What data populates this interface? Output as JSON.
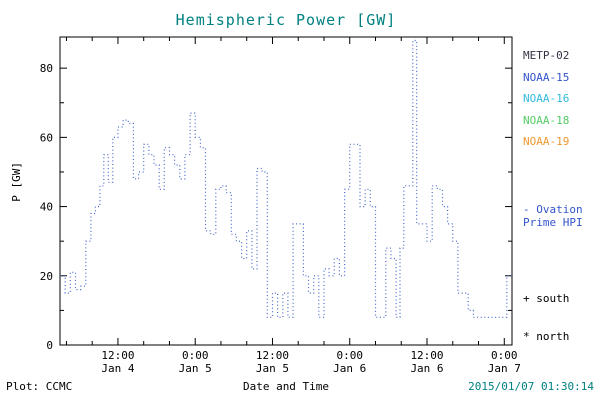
{
  "title": "Hemispheric Power [GW]",
  "colors": {
    "title": "#008080",
    "line": "#4466cc",
    "timestamp": "#008080",
    "ovation": "#3355cc",
    "axis": "#000000"
  },
  "axes": {
    "ylabel": "P [GW]",
    "xlabel": "Date and Time",
    "yticks": [
      0,
      20,
      40,
      60,
      80
    ],
    "ylim": [
      0,
      89
    ],
    "xlim_hours": [
      3,
      73.2
    ],
    "xticks": [
      {
        "hour": 12,
        "time": "12:00",
        "date": "Jan 4"
      },
      {
        "hour": 24,
        "time": "0:00",
        "date": "Jan 5"
      },
      {
        "hour": 36,
        "time": "12:00",
        "date": "Jan 5"
      },
      {
        "hour": 48,
        "time": "0:00",
        "date": "Jan 6"
      },
      {
        "hour": 60,
        "time": "12:00",
        "date": "Jan 6"
      },
      {
        "hour": 72,
        "time": "0:00",
        "date": "Jan 7"
      }
    ]
  },
  "legend": {
    "satellites": [
      {
        "label": "METP-02",
        "color": "#333344"
      },
      {
        "label": "NOAA-15",
        "color": "#3355cc"
      },
      {
        "label": "NOAA-16",
        "color": "#33bbdd"
      },
      {
        "label": "NOAA-18",
        "color": "#55cc66"
      },
      {
        "label": "NOAA-19",
        "color": "#ee9933"
      }
    ],
    "ovation_line1": "- Ovation",
    "ovation_line2": "Prime HPI",
    "south_marker": "+ south",
    "north_marker": "* north"
  },
  "footer": {
    "plot_credit": "Plot: CCMC",
    "timestamp": "2015/01/07 01:30:14"
  },
  "chart_data": {
    "type": "line",
    "subtype": "step-post dotted",
    "title": "Hemispheric Power [GW]",
    "xlabel": "Date and Time",
    "ylabel": "P [GW]",
    "ylim": [
      0,
      89
    ],
    "x_reference": "hours since 2015-01-04 00:00",
    "xtick_labels": [
      "12:00 Jan 4",
      "0:00 Jan 5",
      "12:00 Jan 5",
      "0:00 Jan 6",
      "12:00 Jan 6",
      "0:00 Jan 7"
    ],
    "series": [
      {
        "name": "Ovation Prime HPI",
        "color": "#4466cc"
      }
    ],
    "x_hours": [
      3.0,
      3.8,
      4.6,
      5.4,
      6.2,
      7.0,
      7.8,
      8.5,
      9.2,
      9.8,
      10.5,
      11.2,
      12.0,
      12.8,
      13.6,
      14.4,
      15.2,
      16.0,
      16.8,
      17.6,
      18.4,
      19.2,
      20.0,
      20.8,
      21.6,
      22.4,
      23.2,
      24.0,
      24.8,
      25.6,
      26.4,
      27.2,
      28.0,
      28.8,
      29.6,
      30.4,
      31.2,
      32.0,
      32.8,
      33.6,
      34.4,
      35.2,
      36.0,
      36.8,
      37.6,
      38.4,
      39.2,
      40.0,
      40.8,
      41.6,
      42.4,
      43.2,
      44.0,
      44.8,
      45.6,
      46.4,
      47.2,
      48.0,
      48.8,
      49.6,
      50.4,
      51.2,
      52.0,
      52.8,
      53.6,
      54.4,
      55.2,
      55.8,
      56.4,
      57.2,
      57.8,
      58.4,
      59.2,
      60.0,
      60.8,
      61.6,
      62.4,
      63.2,
      64.0,
      64.8,
      65.6,
      66.4,
      67.2,
      68.2,
      69.4,
      70.6,
      71.8,
      72.4
    ],
    "y_gw": [
      20,
      15,
      21,
      16,
      17,
      30,
      38,
      40,
      46,
      55,
      47,
      60,
      63,
      65,
      64,
      48,
      50,
      58,
      55,
      52,
      45,
      57,
      55,
      52,
      48,
      55,
      67,
      60,
      57,
      33,
      32,
      45,
      46,
      44,
      32,
      30,
      25,
      33,
      22,
      51,
      50,
      8,
      15,
      8,
      15,
      8,
      35,
      35,
      20,
      15,
      20,
      8,
      22,
      20,
      25,
      20,
      45,
      58,
      58,
      40,
      45,
      40,
      8,
      8,
      28,
      25,
      8,
      28,
      46,
      46,
      88,
      35,
      35,
      30,
      46,
      45,
      40,
      35,
      30,
      15,
      15,
      10,
      8,
      8,
      8,
      8,
      8,
      20
    ]
  }
}
